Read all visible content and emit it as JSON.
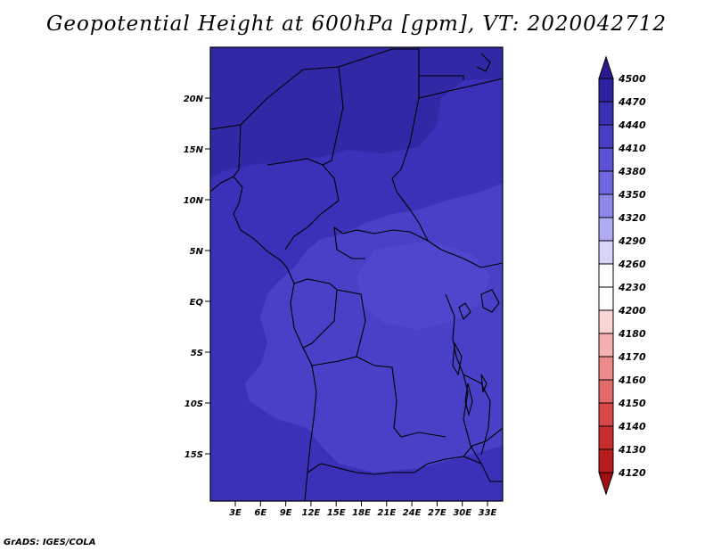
{
  "title": "Geopotential Height at 600hPa [gpm], VT: 2020042712",
  "credit": "GrADS: IGES/COLA",
  "map": {
    "lat_ticks": [
      "20N",
      "15N",
      "10N",
      "5N",
      "EQ",
      "5S",
      "10S",
      "15S"
    ],
    "lon_ticks": [
      "3E",
      "6E",
      "9E",
      "12E",
      "15E",
      "18E",
      "21E",
      "24E",
      "27E",
      "30E",
      "33E"
    ]
  },
  "colorbar": {
    "levels": [
      "4500",
      "4470",
      "4440",
      "4410",
      "4380",
      "4350",
      "4320",
      "4290",
      "4260",
      "4230",
      "4200",
      "4180",
      "4170",
      "4160",
      "4150",
      "4140",
      "4130",
      "4120"
    ],
    "colors": [
      "#2a1a8f",
      "#2f22a0",
      "#3a30b4",
      "#4a40c6",
      "#5c54d4",
      "#7068e0",
      "#8e88ea",
      "#b0acf2",
      "#d6d4f8",
      "#ffffff",
      "#ffffff",
      "#fbd4d4",
      "#f6b0b0",
      "#ee8c8c",
      "#e46a6a",
      "#d84848",
      "#c82e2e",
      "#b81c1c",
      "#a01010"
    ]
  }
}
